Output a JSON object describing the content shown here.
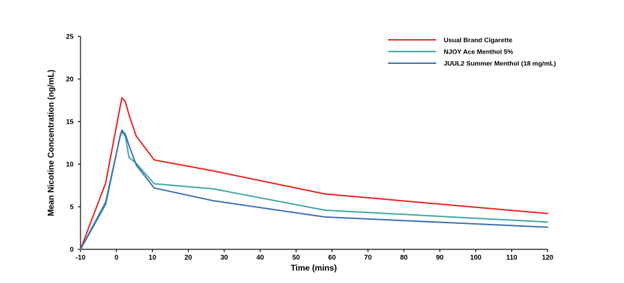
{
  "chart_data": {
    "type": "line",
    "title": "",
    "xlabel": "Time (mins)",
    "ylabel": "Mean Nicotine Concentration (ng/mL)",
    "xlim": [
      -10,
      120
    ],
    "ylim": [
      0,
      25
    ],
    "xticks": [
      -10,
      0,
      10,
      20,
      30,
      40,
      50,
      60,
      70,
      80,
      90,
      100,
      110,
      120
    ],
    "yticks": [
      0,
      5,
      10,
      15,
      20,
      25
    ],
    "grid": false,
    "legend_position": "top-right",
    "series": [
      {
        "name": "Usual Brand Cigarette",
        "color": "#e8231f",
        "x": [
          -10,
          -3,
          1.5,
          2.5,
          3.5,
          5.5,
          10.5,
          27,
          58,
          120
        ],
        "y": [
          0,
          7.8,
          17.8,
          17.3,
          15.8,
          13.3,
          10.5,
          9.2,
          6.5,
          4.2
        ]
      },
      {
        "name": "NJOY Ace Menthol 5%",
        "color": "#3fa8a0",
        "x": [
          -10,
          -3,
          1,
          1.5,
          2.5,
          3.5,
          5.5,
          10.5,
          27,
          58,
          120
        ],
        "y": [
          0,
          5.6,
          13.2,
          13.8,
          13.2,
          10.8,
          10.1,
          7.7,
          7.1,
          4.6,
          3.2
        ]
      },
      {
        "name": "JUUL2 Summer Menthol (18 mg/mL)",
        "color": "#3b6fae",
        "x": [
          -10,
          -3,
          1,
          1.5,
          2.5,
          3.5,
          5.5,
          10.5,
          27,
          58,
          120
        ],
        "y": [
          0,
          5.3,
          13.3,
          14.0,
          13.5,
          12.2,
          9.9,
          7.2,
          5.7,
          3.8,
          2.6
        ]
      }
    ]
  }
}
